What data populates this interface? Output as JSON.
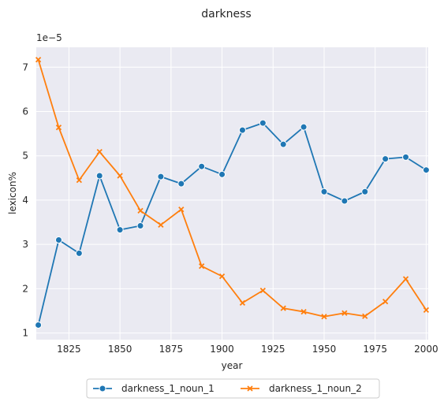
{
  "chart_data": {
    "type": "line",
    "title": "darkness",
    "xlabel": "year",
    "ylabel": "lexicon%",
    "y_offset_label": "1e−5",
    "y_scale_factor": 1e-05,
    "x": [
      1810,
      1820,
      1830,
      1840,
      1850,
      1860,
      1870,
      1880,
      1890,
      1900,
      1910,
      1920,
      1930,
      1940,
      1950,
      1960,
      1970,
      1980,
      1990,
      2000
    ],
    "xlim": [
      1809,
      2001
    ],
    "ylim": [
      0.85,
      7.45
    ],
    "x_ticks": [
      1825,
      1850,
      1875,
      1900,
      1925,
      1950,
      1975,
      2000
    ],
    "y_ticks": [
      1,
      2,
      3,
      4,
      5,
      6,
      7
    ],
    "grid": true,
    "legend_position": "bottom-center",
    "series": [
      {
        "name": "darkness_1_noun_1",
        "color": "#1f77b4",
        "marker": "circle",
        "values": [
          1.18,
          3.1,
          2.8,
          4.55,
          3.33,
          3.42,
          4.53,
          4.37,
          4.76,
          4.58,
          5.58,
          5.74,
          5.26,
          5.65,
          4.19,
          3.98,
          4.19,
          4.93,
          4.97,
          4.68
        ]
      },
      {
        "name": "darkness_1_noun_2",
        "color": "#ff7f0e",
        "marker": "x",
        "values": [
          7.17,
          5.64,
          4.45,
          5.09,
          4.55,
          3.76,
          3.44,
          3.79,
          2.51,
          2.28,
          1.68,
          1.96,
          1.56,
          1.48,
          1.37,
          1.45,
          1.38,
          1.71,
          2.22,
          1.52
        ]
      }
    ]
  }
}
